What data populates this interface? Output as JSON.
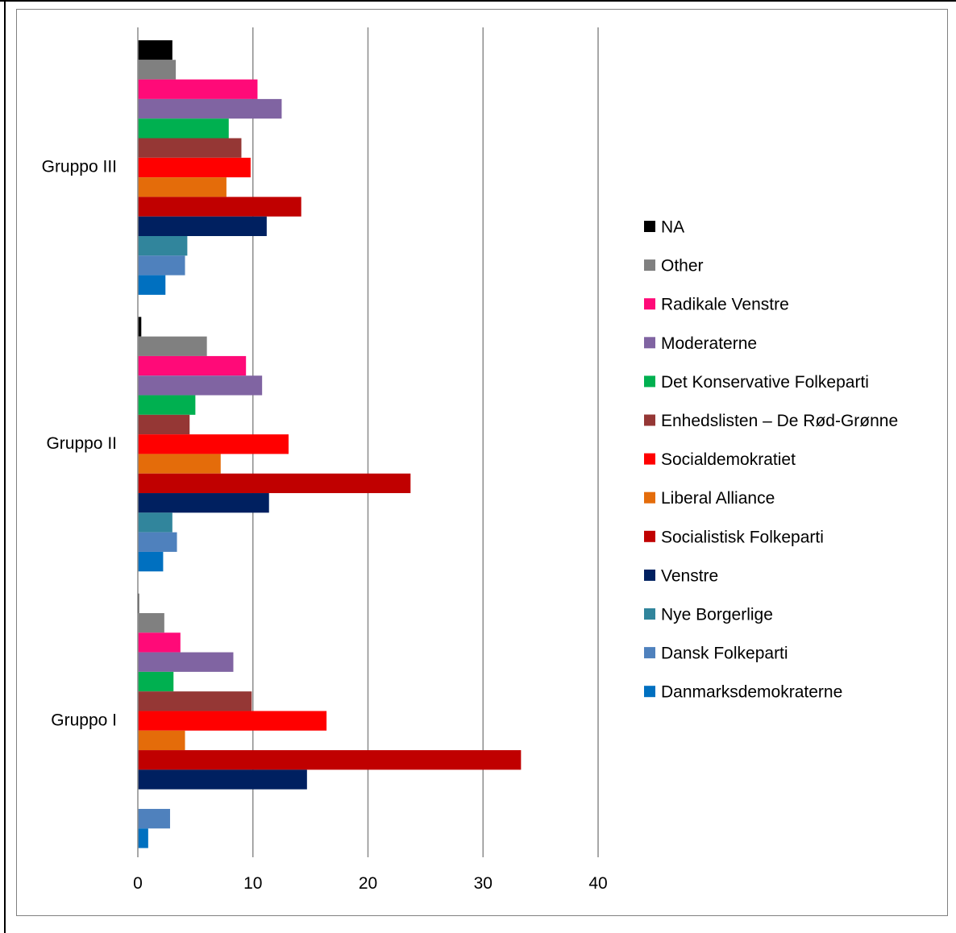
{
  "chart_data": {
    "type": "bar",
    "orientation": "horizontal",
    "title": "",
    "xlabel": "",
    "ylabel": "",
    "xlim": [
      0,
      40
    ],
    "x_ticks": [
      0,
      10,
      20,
      30,
      40
    ],
    "grid": "vertical",
    "legend_position": "right",
    "categories": [
      "Gruppo III",
      "Gruppo II",
      "Gruppo I"
    ],
    "series": [
      {
        "name": "NA",
        "color": "#000000",
        "values": [
          3.0,
          0.3,
          0.1
        ]
      },
      {
        "name": "Other",
        "color": "#808080",
        "values": [
          3.3,
          6.0,
          2.3
        ]
      },
      {
        "name": "Radikale Venstre",
        "color": "#FF0A78",
        "values": [
          10.4,
          9.4,
          3.7
        ]
      },
      {
        "name": "Moderaterne",
        "color": "#8064A2",
        "values": [
          12.5,
          10.8,
          8.3
        ]
      },
      {
        "name": "Det Konservative Folkeparti",
        "color": "#00B050",
        "values": [
          7.9,
          5.0,
          3.1
        ]
      },
      {
        "name": "Enhedslisten – De Rød-Grønne",
        "color": "#953735",
        "values": [
          9.0,
          4.5,
          9.9
        ]
      },
      {
        "name": "Socialdemokratiet",
        "color": "#FF0000",
        "values": [
          9.8,
          13.1,
          16.4
        ]
      },
      {
        "name": "Liberal Alliance",
        "color": "#E46C0A",
        "values": [
          7.7,
          7.2,
          4.1
        ]
      },
      {
        "name": "Socialistisk Folkeparti",
        "color": "#C00000",
        "values": [
          14.2,
          23.7,
          33.3
        ]
      },
      {
        "name": "Venstre",
        "color": "#002060",
        "values": [
          11.2,
          11.4,
          14.7
        ]
      },
      {
        "name": "Nye Borgerlige",
        "color": "#31859C",
        "values": [
          4.3,
          3.0,
          0.0
        ]
      },
      {
        "name": "Dansk Folkeparti",
        "color": "#4F81BD",
        "values": [
          4.1,
          3.4,
          2.8
        ]
      },
      {
        "name": "Danmarksdemokraterne",
        "color": "#0070C0",
        "values": [
          2.4,
          2.2,
          0.9
        ]
      }
    ]
  }
}
